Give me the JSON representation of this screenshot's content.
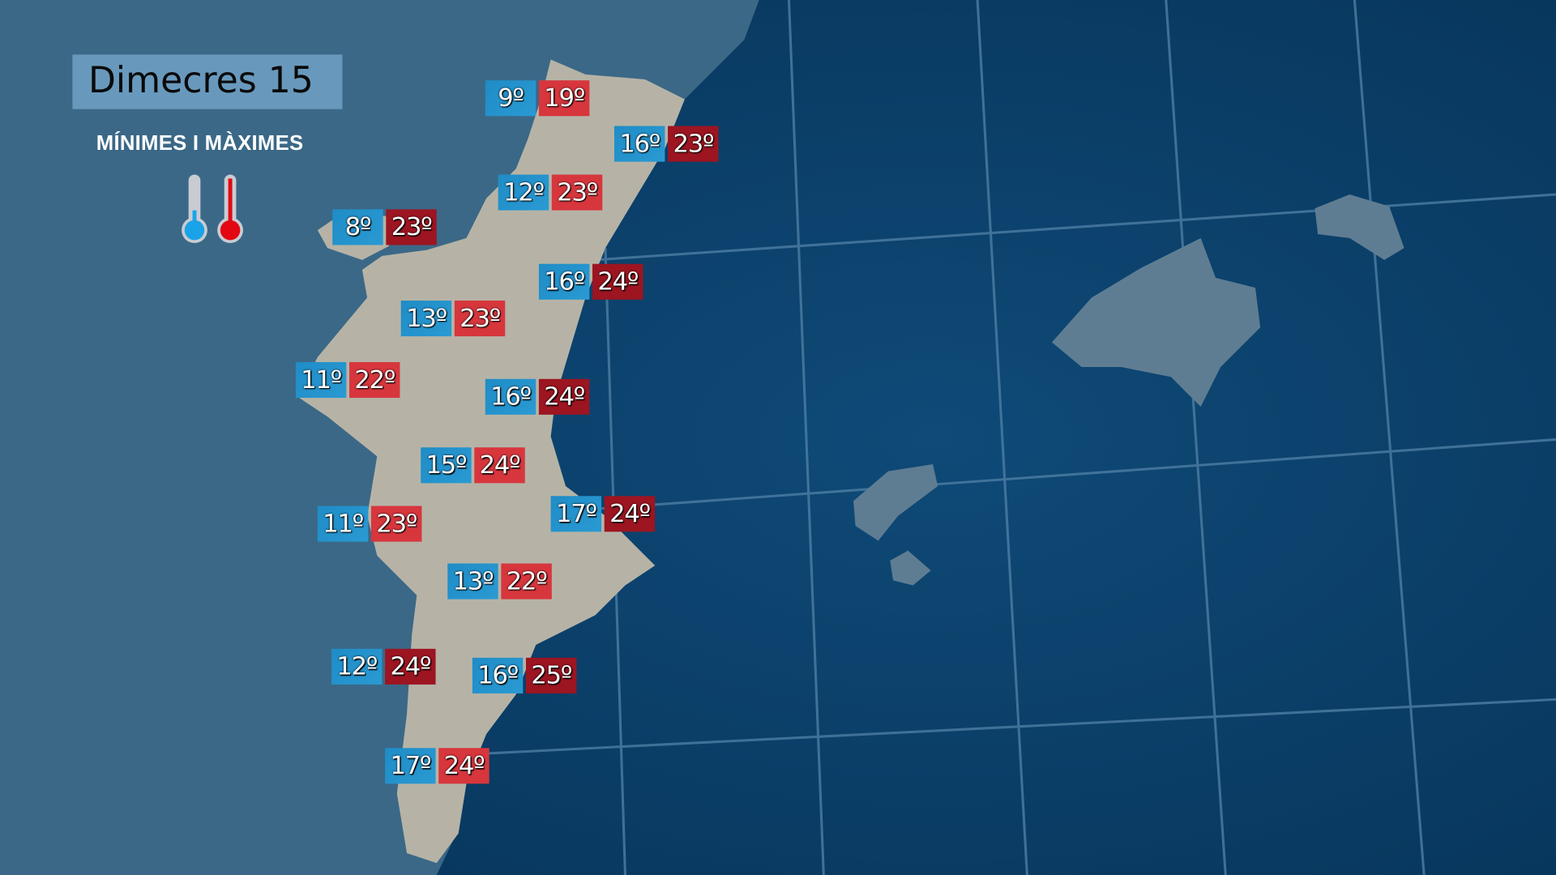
{
  "header": {
    "title": "Dimecres 15",
    "subtitle": "MÍNIMES I MÀXIMES"
  },
  "legend": {
    "icons": [
      "thermometer-cold-icon",
      "thermometer-hot-icon"
    ],
    "min_color": "#2a9ad3",
    "max_color": "#d03038"
  },
  "colors": {
    "sea": "#0b3f68",
    "land_interior": "#3a6786",
    "land_region": "#b5b3a7",
    "grid": "#4f7fa3",
    "max_bright": "#d7363d",
    "max_dark": "#9c1521"
  },
  "stations": [
    {
      "min": "9º",
      "max": "19º",
      "max_tone": "bright"
    },
    {
      "min": "16º",
      "max": "23º",
      "max_tone": "dark"
    },
    {
      "min": "12º",
      "max": "23º",
      "max_tone": "bright"
    },
    {
      "min": "8º",
      "max": "23º",
      "max_tone": "dark"
    },
    {
      "min": "16º",
      "max": "24º",
      "max_tone": "dark"
    },
    {
      "min": "13º",
      "max": "23º",
      "max_tone": "bright"
    },
    {
      "min": "11º",
      "max": "22º",
      "max_tone": "bright"
    },
    {
      "min": "16º",
      "max": "24º",
      "max_tone": "dark"
    },
    {
      "min": "15º",
      "max": "24º",
      "max_tone": "bright"
    },
    {
      "min": "11º",
      "max": "23º",
      "max_tone": "bright"
    },
    {
      "min": "17º",
      "max": "24º",
      "max_tone": "dark"
    },
    {
      "min": "13º",
      "max": "22º",
      "max_tone": "bright"
    },
    {
      "min": "12º",
      "max": "24º",
      "max_tone": "dark"
    },
    {
      "min": "16º",
      "max": "25º",
      "max_tone": "dark"
    },
    {
      "min": "17º",
      "max": "24º",
      "max_tone": "bright"
    }
  ]
}
